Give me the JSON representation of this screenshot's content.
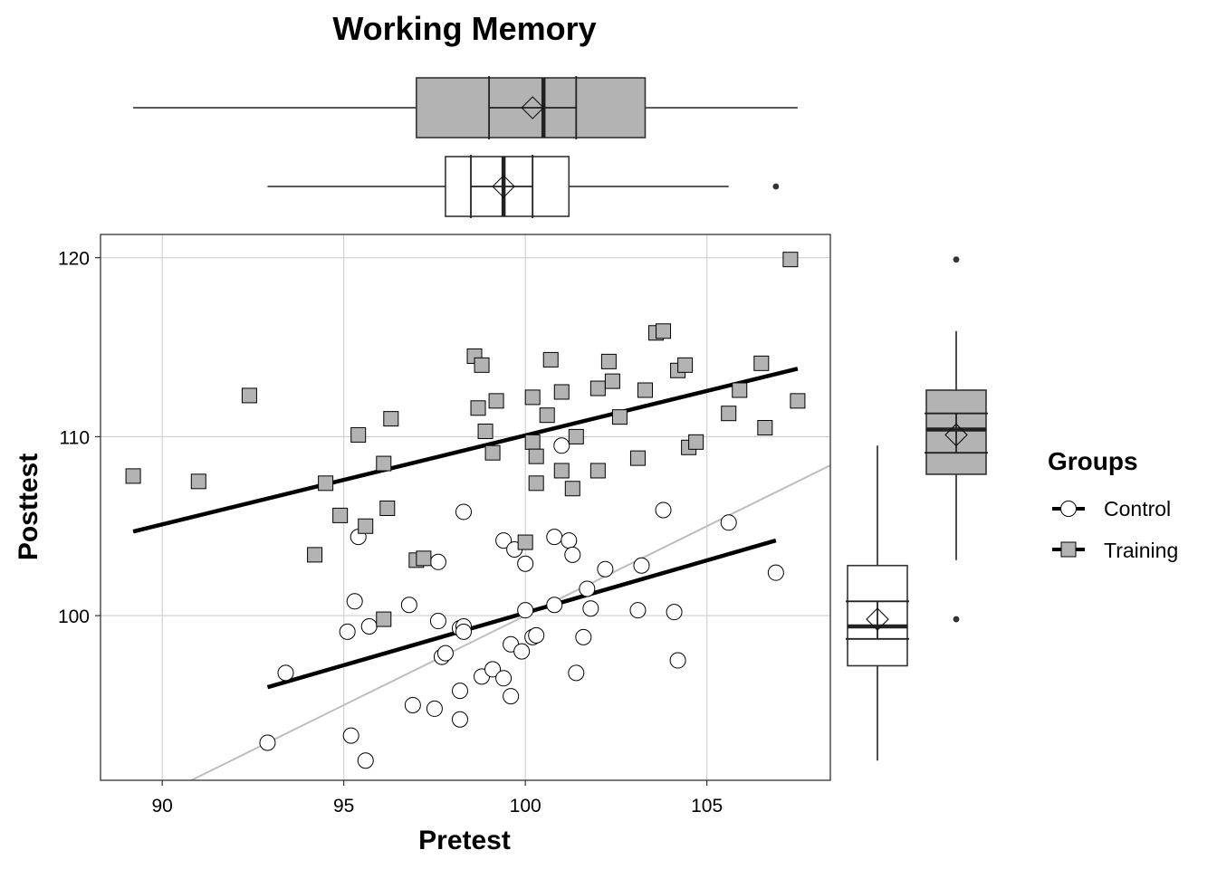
{
  "chart_data": {
    "type": "scatter",
    "title": "Working Memory",
    "xlabel": "Pretest",
    "ylabel": "Posttest",
    "xlim": [
      88.3,
      108.4
    ],
    "ylim": [
      90.8,
      121.3
    ],
    "xticks": [
      90,
      95,
      100,
      105
    ],
    "yticks": [
      100,
      110,
      120
    ],
    "grid": true,
    "legend": {
      "title": "Groups",
      "position": "right",
      "entries": [
        {
          "label": "Control",
          "fill": "#ffffff",
          "marker": "circle"
        },
        {
          "label": "Training",
          "fill": "#b3b3b3",
          "marker": "square"
        }
      ]
    },
    "identity_line": {
      "slope": 1,
      "intercept": 0,
      "color": "#bdbdbd"
    },
    "series": [
      {
        "name": "Control",
        "marker": "circle",
        "fill": "#ffffff",
        "points": [
          [
            92.9,
            92.9
          ],
          [
            93.4,
            96.8
          ],
          [
            95.1,
            99.1
          ],
          [
            95.2,
            93.3
          ],
          [
            95.3,
            100.8
          ],
          [
            95.4,
            104.4
          ],
          [
            95.6,
            91.9
          ],
          [
            95.7,
            99.4
          ],
          [
            96.8,
            100.6
          ],
          [
            96.9,
            95.0
          ],
          [
            97.5,
            94.8
          ],
          [
            97.6,
            103.0
          ],
          [
            97.6,
            99.7
          ],
          [
            97.7,
            97.7
          ],
          [
            97.8,
            97.9
          ],
          [
            98.2,
            95.8
          ],
          [
            98.2,
            94.2
          ],
          [
            98.3,
            105.8
          ],
          [
            98.2,
            99.3
          ],
          [
            98.3,
            99.4
          ],
          [
            98.3,
            99.1
          ],
          [
            98.8,
            96.6
          ],
          [
            99.1,
            97.0
          ],
          [
            99.4,
            104.2
          ],
          [
            99.4,
            96.5
          ],
          [
            99.6,
            95.5
          ],
          [
            99.6,
            98.4
          ],
          [
            99.7,
            103.7
          ],
          [
            99.9,
            98.0
          ],
          [
            100.0,
            102.9
          ],
          [
            100.0,
            100.3
          ],
          [
            100.2,
            98.8
          ],
          [
            100.3,
            98.9
          ],
          [
            100.8,
            100.6
          ],
          [
            100.8,
            104.4
          ],
          [
            101.0,
            109.5
          ],
          [
            101.2,
            104.2
          ],
          [
            101.3,
            103.4
          ],
          [
            101.4,
            96.8
          ],
          [
            101.6,
            98.8
          ],
          [
            101.7,
            101.5
          ],
          [
            101.8,
            100.4
          ],
          [
            102.2,
            102.6
          ],
          [
            103.1,
            100.3
          ],
          [
            103.2,
            102.8
          ],
          [
            103.8,
            105.9
          ],
          [
            104.1,
            100.2
          ],
          [
            104.2,
            97.5
          ],
          [
            105.6,
            105.2
          ],
          [
            106.9,
            102.4
          ]
        ],
        "fit_line": [
          [
            92.9,
            96.0
          ],
          [
            106.9,
            104.2
          ]
        ],
        "boxplot_pretest": {
          "min": 92.9,
          "q1": 97.8,
          "median": 99.4,
          "q3": 101.2,
          "max": 105.6,
          "mean": 99.4,
          "ci": [
            98.5,
            100.2
          ],
          "outliers": [
            106.9
          ]
        },
        "boxplot_posttest": {
          "min": 91.9,
          "q1": 97.2,
          "median": 99.4,
          "q3": 102.8,
          "max": 109.5,
          "mean": 99.8,
          "ci": [
            98.7,
            100.8
          ],
          "outliers": []
        }
      },
      {
        "name": "Training",
        "marker": "square",
        "fill": "#b3b3b3",
        "points": [
          [
            89.2,
            107.8
          ],
          [
            91.0,
            107.5
          ],
          [
            92.4,
            112.3
          ],
          [
            94.2,
            103.4
          ],
          [
            94.5,
            107.4
          ],
          [
            94.9,
            105.6
          ],
          [
            95.4,
            110.1
          ],
          [
            95.6,
            105.0
          ],
          [
            96.1,
            108.5
          ],
          [
            96.2,
            106.0
          ],
          [
            96.3,
            111.0
          ],
          [
            96.1,
            99.8
          ],
          [
            97.0,
            103.1
          ],
          [
            97.2,
            103.2
          ],
          [
            98.6,
            114.5
          ],
          [
            98.7,
            111.6
          ],
          [
            98.8,
            114.0
          ],
          [
            98.9,
            110.3
          ],
          [
            99.1,
            109.1
          ],
          [
            99.2,
            112.0
          ],
          [
            100.0,
            104.1
          ],
          [
            100.2,
            112.2
          ],
          [
            100.2,
            109.7
          ],
          [
            100.3,
            107.4
          ],
          [
            100.3,
            108.9
          ],
          [
            100.6,
            111.2
          ],
          [
            100.7,
            114.3
          ],
          [
            101.0,
            112.5
          ],
          [
            101.0,
            108.1
          ],
          [
            101.3,
            107.1
          ],
          [
            101.4,
            110.0
          ],
          [
            102.0,
            112.7
          ],
          [
            102.0,
            108.1
          ],
          [
            102.3,
            114.2
          ],
          [
            102.4,
            113.1
          ],
          [
            102.6,
            111.1
          ],
          [
            103.1,
            108.8
          ],
          [
            103.3,
            112.6
          ],
          [
            103.6,
            115.8
          ],
          [
            103.8,
            115.9
          ],
          [
            104.2,
            113.7
          ],
          [
            104.4,
            114.0
          ],
          [
            104.5,
            109.4
          ],
          [
            104.7,
            109.7
          ],
          [
            105.6,
            111.3
          ],
          [
            105.9,
            112.6
          ],
          [
            106.5,
            114.1
          ],
          [
            106.6,
            110.5
          ],
          [
            107.3,
            119.9
          ],
          [
            107.5,
            112.0
          ]
        ],
        "fit_line": [
          [
            89.2,
            104.7
          ],
          [
            107.5,
            113.8
          ]
        ],
        "boxplot_pretest": {
          "min": 89.2,
          "q1": 97.0,
          "median": 100.5,
          "q3": 103.3,
          "max": 107.5,
          "mean": 100.2,
          "ci": [
            99.0,
            101.4
          ],
          "outliers": []
        },
        "boxplot_posttest": {
          "min": 103.1,
          "q1": 107.9,
          "median": 110.4,
          "q3": 112.6,
          "max": 115.9,
          "mean": 110.1,
          "ci": [
            109.1,
            111.3
          ],
          "outliers": [
            119.9,
            99.8
          ]
        }
      }
    ]
  }
}
